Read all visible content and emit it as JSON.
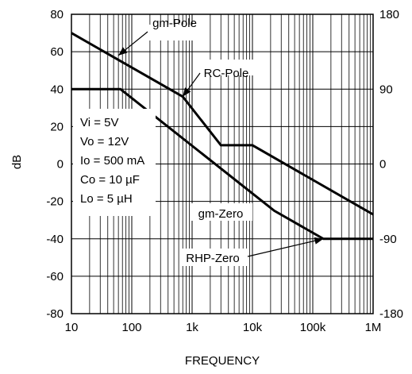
{
  "chart_data": {
    "type": "line",
    "xlabel": "FREQUENCY",
    "ylabel": "dB",
    "x_scale": "log",
    "xlim": [
      10,
      1000000
    ],
    "ylim": [
      -80,
      80
    ],
    "y2lim": [
      -180,
      180
    ],
    "grid": "log-x minor, y every 20 dB",
    "x_ticks": [
      {
        "value": 10,
        "label": "10"
      },
      {
        "value": 100,
        "label": "100"
      },
      {
        "value": 1000,
        "label": "1k"
      },
      {
        "value": 10000,
        "label": "10k"
      },
      {
        "value": 100000,
        "label": "100k"
      },
      {
        "value": 1000000,
        "label": "1M"
      }
    ],
    "y_ticks": [
      {
        "value": 80,
        "label": "80"
      },
      {
        "value": 60,
        "label": "60"
      },
      {
        "value": 40,
        "label": "40"
      },
      {
        "value": 20,
        "label": "20"
      },
      {
        "value": 0,
        "label": "0"
      },
      {
        "value": -20,
        "label": "-20"
      },
      {
        "value": -40,
        "label": "-40"
      },
      {
        "value": -60,
        "label": "-60"
      },
      {
        "value": -80,
        "label": "-80"
      }
    ],
    "y2_ticks": [
      {
        "value": 180,
        "label": "180"
      },
      {
        "value": 90,
        "label": "90"
      },
      {
        "value": 0,
        "label": "0"
      },
      {
        "value": -90,
        "label": "-90"
      },
      {
        "value": -180,
        "label": "-180"
      }
    ],
    "series": [
      {
        "axis": "left",
        "points": [
          [
            10,
            70
          ],
          [
            700,
            36
          ],
          [
            3000,
            10
          ],
          [
            10000,
            10
          ],
          [
            1000000,
            -27
          ]
        ]
      },
      {
        "axis": "left",
        "points": [
          [
            10,
            40
          ],
          [
            65,
            40
          ],
          [
            23000,
            -25
          ],
          [
            150000,
            -40
          ],
          [
            1000000,
            -40
          ]
        ]
      }
    ],
    "annotations": [
      {
        "text": "gm-Pole",
        "points_to": [
          60,
          58
        ]
      },
      {
        "text": "RC-Pole",
        "points_to": [
          700,
          36
        ]
      },
      {
        "text": "gm-Zero",
        "points_to": null
      },
      {
        "text": "RHP-Zero",
        "points_to": [
          150000,
          -40
        ]
      }
    ],
    "conditions": [
      "Vi = 5V",
      "Vo = 12V",
      "Io = 500 mA",
      "Co = 10 µF",
      "Lo = 5 µH"
    ]
  }
}
